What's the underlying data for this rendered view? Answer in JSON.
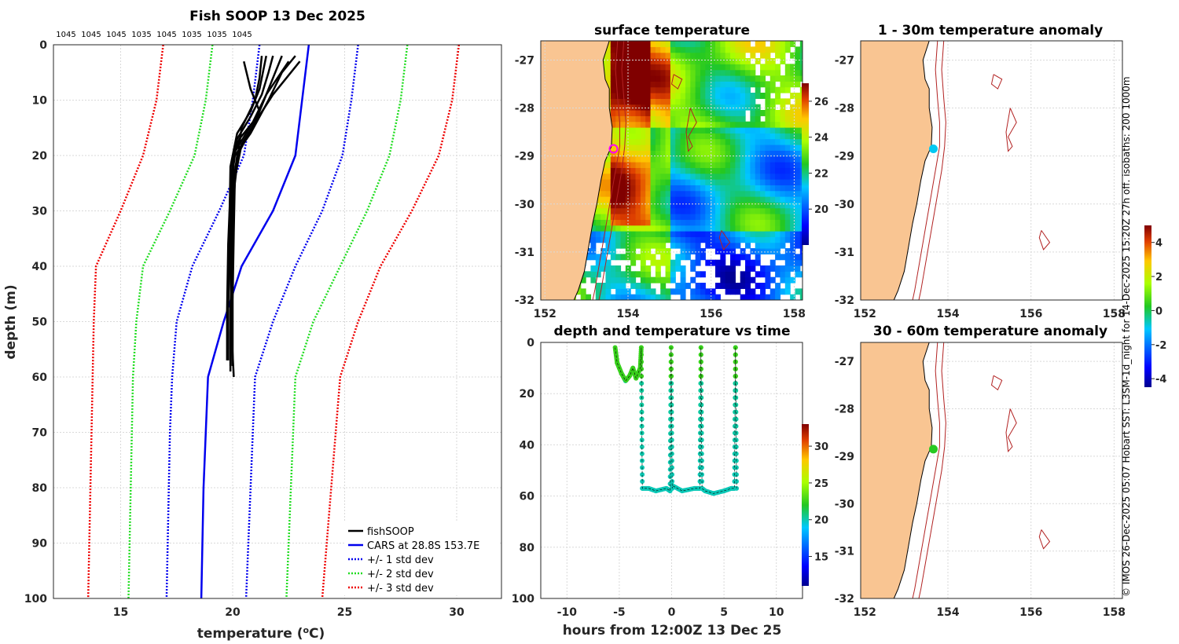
{
  "figure": {
    "credit": "© IMOS 26-Dec-2025 05:07 Hobart SST: L3SM-1d_night for 14-Dec-2025 15:20Z 27h off. isobaths: 200  1000m"
  },
  "colors": {
    "fish": "#000000",
    "cars": "#0000ee",
    "std1": "#0000ee",
    "std2": "#22dd22",
    "std3": "#ee0000",
    "land": "#f9c592",
    "isobath": "#b22222"
  },
  "chart_data": [
    {
      "id": "profile",
      "type": "line",
      "title": "Fish SOOP 13 Dec 2025",
      "xlabel": "temperature (°C)",
      "xlabel_main": "temperature (",
      "xlabel_sup": "o",
      "xlabel_unit": "C)",
      "ylabel": "depth (m)",
      "xlim": [
        12,
        32
      ],
      "ylim": [
        0,
        100
      ],
      "xticks": [
        15,
        20,
        25,
        30
      ],
      "yticks": [
        0,
        10,
        20,
        30,
        40,
        50,
        60,
        70,
        80,
        90,
        100
      ],
      "top_labels": [
        "1045",
        "1045",
        "1045",
        "1035",
        "1045",
        "1035",
        "1035",
        "1045"
      ],
      "legend": [
        "fishSOOP",
        "CARS at 28.8S 153.7E",
        "+/- 1 std dev",
        "+/- 2 std dev",
        "+/- 3 std dev"
      ],
      "depths": [
        0,
        10,
        20,
        30,
        40,
        50,
        60,
        70,
        80,
        90,
        100
      ],
      "cars": [
        23.4,
        23.1,
        22.8,
        21.8,
        20.4,
        19.6,
        18.9,
        18.8,
        18.7,
        18.65,
        18.6
      ],
      "cars_minus1": [
        21.2,
        20.9,
        20.5,
        19.4,
        18.2,
        17.5,
        17.3,
        17.2,
        17.15,
        17.1,
        17.05
      ],
      "cars_plus1": [
        25.6,
        25.3,
        24.9,
        24.0,
        22.8,
        21.8,
        21.0,
        20.9,
        20.8,
        20.7,
        20.6
      ],
      "cars_minus2": [
        19.1,
        18.8,
        18.3,
        17.2,
        16.0,
        15.7,
        15.55,
        15.5,
        15.45,
        15.4,
        15.35
      ],
      "cars_plus2": [
        27.8,
        27.5,
        27.0,
        26.0,
        24.8,
        23.6,
        22.8,
        22.7,
        22.6,
        22.5,
        22.4
      ],
      "cars_minus3": [
        16.9,
        16.6,
        16.0,
        15.0,
        13.9,
        13.8,
        13.75,
        13.7,
        13.65,
        13.6,
        13.55
      ],
      "cars_plus3": [
        30.1,
        29.8,
        29.2,
        28.0,
        26.6,
        25.6,
        24.8,
        24.6,
        24.4,
        24.2,
        24.0
      ],
      "fish_profiles": [
        {
          "t": [
            21.3,
            21.2,
            21.0,
            20.4,
            20.3,
            20.1,
            20.0,
            19.95,
            19.9,
            19.9,
            19.9,
            19.9
          ],
          "d": [
            2,
            6,
            10,
            15,
            18,
            25,
            30,
            40,
            48,
            52,
            56,
            58
          ]
        },
        {
          "t": [
            21.8,
            21.6,
            21.3,
            20.8,
            20.2,
            20.0,
            19.9,
            19.85,
            19.8,
            19.8,
            19.8
          ],
          "d": [
            2,
            5,
            9,
            13,
            17,
            22,
            30,
            38,
            48,
            54,
            57
          ]
        },
        {
          "t": [
            22.5,
            22.0,
            21.5,
            20.9,
            20.3,
            20.05,
            20.0,
            19.95,
            19.9,
            19.9
          ],
          "d": [
            3,
            6,
            9,
            14,
            17,
            20,
            30,
            42,
            52,
            59
          ]
        },
        {
          "t": [
            23.0,
            22.4,
            21.8,
            21.0,
            20.4,
            20.1,
            20.05,
            20.0,
            20.0
          ],
          "d": [
            3,
            6,
            9,
            14,
            18,
            24,
            34,
            46,
            58
          ]
        },
        {
          "t": [
            22.8,
            22.2,
            21.6,
            20.8,
            20.1,
            19.9,
            19.8,
            19.75,
            19.75
          ],
          "d": [
            2,
            5,
            10,
            16,
            20,
            26,
            36,
            48,
            57
          ]
        },
        {
          "t": [
            21.5,
            21.2,
            20.8,
            20.2,
            19.9,
            19.85,
            19.8,
            19.8
          ],
          "d": [
            2,
            8,
            12,
            16,
            22,
            34,
            46,
            55
          ]
        },
        {
          "t": [
            22.2,
            21.8,
            21.4,
            21.0,
            20.6,
            20.2,
            20.0,
            19.9,
            19.95,
            20.05
          ],
          "d": [
            2,
            6,
            10,
            14,
            17,
            20,
            26,
            40,
            52,
            60
          ]
        },
        {
          "t": [
            20.5,
            20.8,
            21.2,
            20.6,
            20.0,
            19.9,
            19.95,
            20.0
          ],
          "d": [
            3,
            8,
            12,
            16,
            20,
            30,
            45,
            58
          ]
        }
      ]
    },
    {
      "id": "sst-map",
      "type": "heatmap",
      "title": "surface temperature",
      "xlim": [
        151.9,
        158.2
      ],
      "ylim": [
        -32,
        -26.6
      ],
      "xticks": [
        152,
        154,
        156,
        158
      ],
      "yticks": [
        -27,
        -28,
        -29,
        -30,
        -31,
        -32
      ],
      "colorbar_range": [
        18,
        27
      ],
      "colorbar_ticks": [
        20,
        22,
        24,
        26
      ],
      "station": {
        "lon": 153.65,
        "lat": -28.85
      }
    },
    {
      "id": "depth-time",
      "type": "scatter",
      "title": "depth and temperature vs time",
      "xlabel": "hours from 12:00Z 13 Dec 25",
      "xlim": [
        -12.5,
        12.5
      ],
      "ylim": [
        0,
        100
      ],
      "xticks": [
        -10,
        -5,
        0,
        5,
        10
      ],
      "yticks": [
        0,
        20,
        40,
        60,
        80,
        100
      ],
      "colorbar_range": [
        11,
        33
      ],
      "colorbar_ticks": [
        15,
        20,
        25,
        30
      ],
      "track_hours": [
        -5.4,
        -5.2,
        -4.8,
        -4.4,
        -4.0,
        -3.7,
        -3.4,
        -3.0,
        -2.9,
        -2.85,
        -2.8,
        -2.2,
        -1.5,
        -0.5,
        -0.15,
        -0.1,
        -0.05,
        0.0,
        0.05,
        0.1,
        1.0,
        2.2,
        2.7,
        2.75,
        2.8,
        2.85,
        2.9,
        3.2,
        4.0,
        5.0,
        5.7,
        6.0,
        6.05,
        6.1,
        6.15,
        6.2
      ],
      "track_depths": [
        2,
        8,
        12,
        15,
        13,
        10,
        14,
        10,
        2,
        30,
        57,
        57,
        58,
        57,
        58,
        30,
        2,
        30,
        57,
        56,
        58,
        57,
        57,
        30,
        2,
        30,
        57,
        58,
        59,
        58,
        57,
        57,
        30,
        2,
        30,
        57
      ]
    },
    {
      "id": "anom-1-30",
      "type": "heatmap",
      "title": "1 - 30m temperature anomaly",
      "xlim": [
        151.9,
        158.2
      ],
      "ylim": [
        -32,
        -26.6
      ],
      "xticks": [
        152,
        154,
        156,
        158
      ],
      "yticks": [
        -27,
        -28,
        -29,
        -30,
        -31,
        -32
      ],
      "station": {
        "lon": 153.65,
        "lat": -28.85,
        "value": -1.0
      }
    },
    {
      "id": "anom-30-60",
      "type": "heatmap",
      "title": "30 - 60m temperature anomaly",
      "xlim": [
        151.9,
        158.2
      ],
      "ylim": [
        -32,
        -26.6
      ],
      "xticks": [
        152,
        154,
        156,
        158
      ],
      "yticks": [
        -27,
        -28,
        -29,
        -30,
        -31,
        -32
      ],
      "station": {
        "lon": 153.65,
        "lat": -28.85,
        "value": 0.3
      },
      "colorbar_range": [
        -4.5,
        5
      ],
      "colorbar_ticks": [
        -4,
        -2,
        0,
        2,
        4
      ]
    }
  ]
}
